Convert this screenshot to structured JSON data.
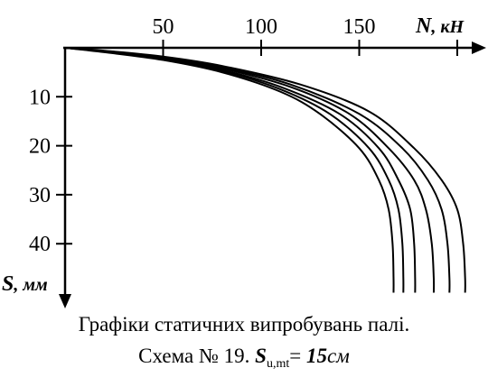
{
  "chart_data": {
    "type": "line",
    "x_axis": {
      "label_symbol": "N",
      "label_unit": ", кН",
      "ticks": [
        50,
        100,
        150,
        200
      ],
      "tick_labels": [
        "50",
        "100",
        "150"
      ],
      "range": [
        0,
        200
      ],
      "position": "top"
    },
    "y_axis": {
      "label_symbol": "S",
      "label_unit": ", мм",
      "ticks": [
        10,
        20,
        30,
        40
      ],
      "tick_labels": [
        "10",
        "20",
        "30",
        "40"
      ],
      "range": [
        0,
        50
      ],
      "direction": "downward"
    },
    "grid": false,
    "series": [
      {
        "points": [
          [
            0,
            0
          ],
          [
            20,
            0.9
          ],
          [
            50,
            2.5
          ],
          [
            80,
            5
          ],
          [
            110,
            9
          ],
          [
            130,
            13.5
          ],
          [
            150,
            20.5
          ],
          [
            160,
            27
          ],
          [
            165,
            33
          ],
          [
            167,
            40
          ],
          [
            167.5,
            47
          ],
          [
            167.5,
            50
          ]
        ]
      },
      {
        "points": [
          [
            0,
            0
          ],
          [
            20,
            0.8
          ],
          [
            50,
            2.3
          ],
          [
            80,
            4.7
          ],
          [
            110,
            8.5
          ],
          [
            135,
            13.5
          ],
          [
            155,
            20.5
          ],
          [
            165,
            27
          ],
          [
            170,
            33
          ],
          [
            172,
            40
          ],
          [
            172.5,
            47
          ],
          [
            172.5,
            50
          ]
        ]
      },
      {
        "points": [
          [
            0,
            0
          ],
          [
            20,
            0.75
          ],
          [
            50,
            2.2
          ],
          [
            80,
            4.5
          ],
          [
            110,
            8
          ],
          [
            140,
            13.5
          ],
          [
            160,
            20.5
          ],
          [
            170,
            27
          ],
          [
            176,
            33
          ],
          [
            178,
            40
          ],
          [
            178.5,
            47
          ],
          [
            178.5,
            50
          ]
        ]
      },
      {
        "points": [
          [
            0,
            0
          ],
          [
            20,
            0.7
          ],
          [
            50,
            2
          ],
          [
            80,
            4.2
          ],
          [
            115,
            8
          ],
          [
            145,
            13.5
          ],
          [
            165,
            20.5
          ],
          [
            178,
            27
          ],
          [
            184,
            33
          ],
          [
            187,
            40
          ],
          [
            188,
            47
          ],
          [
            188,
            50
          ]
        ]
      },
      {
        "points": [
          [
            0,
            0
          ],
          [
            20,
            0.65
          ],
          [
            50,
            1.9
          ],
          [
            80,
            4
          ],
          [
            115,
            7.5
          ],
          [
            150,
            13.5
          ],
          [
            172,
            20.5
          ],
          [
            185,
            27
          ],
          [
            192,
            33
          ],
          [
            195,
            40
          ],
          [
            196,
            47
          ],
          [
            196,
            50
          ]
        ]
      },
      {
        "points": [
          [
            0,
            0
          ],
          [
            20,
            0.6
          ],
          [
            50,
            1.8
          ],
          [
            80,
            3.7
          ],
          [
            120,
            7.5
          ],
          [
            155,
            13
          ],
          [
            178,
            20.5
          ],
          [
            192,
            27
          ],
          [
            200,
            33
          ],
          [
            203,
            40
          ],
          [
            204,
            47
          ],
          [
            204,
            50
          ]
        ]
      }
    ]
  },
  "caption": {
    "line1": "Графіки статичних випробувань палі.",
    "line2_prefix": "Схема № 19. ",
    "line2_symbol": "S",
    "line2_subscript": "u,mt",
    "line2_equals": "= ",
    "line2_value": "15",
    "line2_unit": "см"
  }
}
